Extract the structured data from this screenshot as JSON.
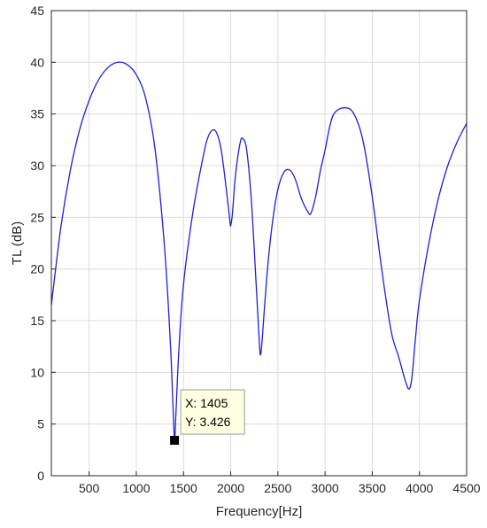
{
  "chart_data": {
    "type": "line",
    "xlabel": "Frequency[Hz]",
    "ylabel": "TL (dB)",
    "xlim": [
      100,
      4500
    ],
    "ylim": [
      0,
      45
    ],
    "x_ticks": [
      500,
      1000,
      1500,
      2000,
      2500,
      3000,
      3500,
      4000,
      4500
    ],
    "y_ticks": [
      0,
      5,
      10,
      15,
      20,
      25,
      30,
      35,
      40,
      45
    ],
    "grid": true,
    "colors": {
      "line": "#1f1fd6",
      "grid": "#dcdcdc",
      "axes": "#262626",
      "datatip_bg": "#ffffe1"
    },
    "series": [
      {
        "points": [
          [
            100,
            16.5
          ],
          [
            200,
            24
          ],
          [
            300,
            29.5
          ],
          [
            400,
            33.5
          ],
          [
            500,
            36.3
          ],
          [
            600,
            38.3
          ],
          [
            700,
            39.5
          ],
          [
            800,
            40.0
          ],
          [
            900,
            39.8
          ],
          [
            1000,
            38.8
          ],
          [
            1100,
            36.5
          ],
          [
            1200,
            31.5
          ],
          [
            1300,
            22
          ],
          [
            1360,
            13
          ],
          [
            1390,
            6.5
          ],
          [
            1405,
            3.426
          ],
          [
            1420,
            6.0
          ],
          [
            1450,
            12
          ],
          [
            1500,
            18.5
          ],
          [
            1600,
            25.5
          ],
          [
            1700,
            30.5
          ],
          [
            1750,
            32.5
          ],
          [
            1800,
            33.4
          ],
          [
            1850,
            33.2
          ],
          [
            1900,
            31.5
          ],
          [
            1950,
            28.0
          ],
          [
            1990,
            24.8
          ],
          [
            2000,
            24.2
          ],
          [
            2020,
            25.5
          ],
          [
            2050,
            29.0
          ],
          [
            2100,
            32.2
          ],
          [
            2130,
            32.6
          ],
          [
            2170,
            31.5
          ],
          [
            2220,
            26.5
          ],
          [
            2270,
            18.5
          ],
          [
            2300,
            13.5
          ],
          [
            2320,
            11.8
          ],
          [
            2360,
            16.5
          ],
          [
            2400,
            21.0
          ],
          [
            2450,
            25.0
          ],
          [
            2500,
            27.7
          ],
          [
            2560,
            29.3
          ],
          [
            2620,
            29.6
          ],
          [
            2680,
            28.8
          ],
          [
            2750,
            26.8
          ],
          [
            2820,
            25.5
          ],
          [
            2850,
            25.4
          ],
          [
            2900,
            27.0
          ],
          [
            2950,
            29.5
          ],
          [
            3000,
            31.5
          ],
          [
            3050,
            33.8
          ],
          [
            3100,
            35.1
          ],
          [
            3200,
            35.6
          ],
          [
            3300,
            35.1
          ],
          [
            3400,
            32.5
          ],
          [
            3500,
            27.0
          ],
          [
            3600,
            20.0
          ],
          [
            3700,
            14.0
          ],
          [
            3780,
            11.5
          ],
          [
            3850,
            9.2
          ],
          [
            3890,
            8.4
          ],
          [
            3920,
            9.5
          ],
          [
            3960,
            13.5
          ],
          [
            4000,
            17.0
          ],
          [
            4100,
            22.5
          ],
          [
            4200,
            26.8
          ],
          [
            4300,
            30.0
          ],
          [
            4400,
            32.3
          ],
          [
            4500,
            34.1
          ]
        ]
      }
    ],
    "annotations": [
      {
        "x": 1405,
        "y": 3.426,
        "label_x": "X: 1405",
        "label_y": "Y: 3.426"
      }
    ]
  }
}
